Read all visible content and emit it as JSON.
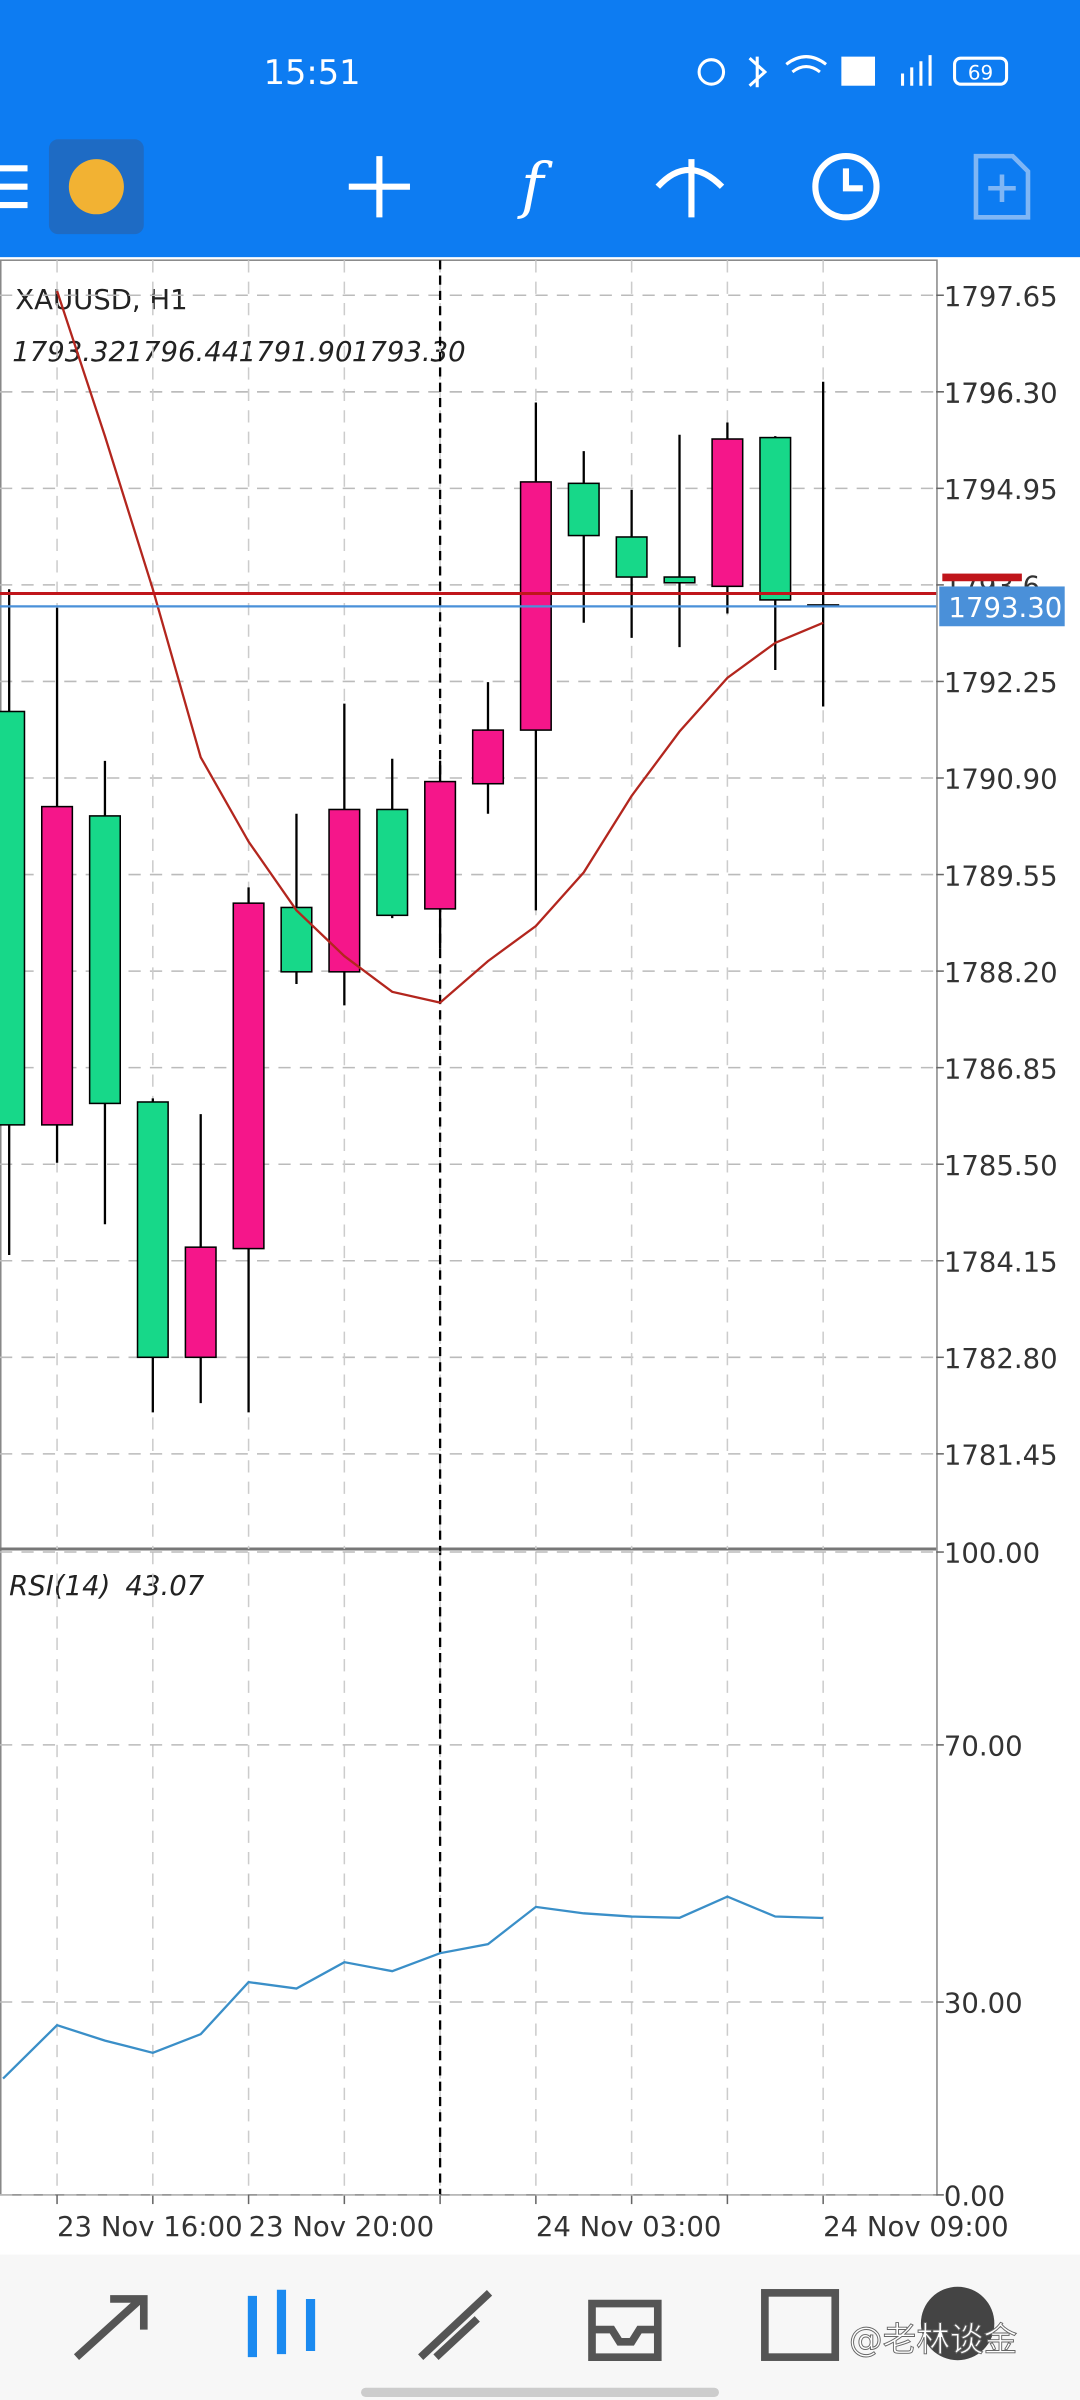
{
  "status_bar": {
    "time": "15:51",
    "battery": "69"
  },
  "watermark": "@老林谈金",
  "chart_data": [
    {
      "type": "candlestick",
      "title": "XAUUSD, H1",
      "ohlc_labels": [
        "1793.32",
        "1796.44",
        "1791.90",
        "1793.30"
      ],
      "categories": [
        null,
        "23 Nov 16:00",
        null,
        null,
        null,
        "23 Nov 20:00",
        null,
        null,
        null,
        null,
        null,
        "24 Nov 03:00",
        null,
        null,
        null,
        null,
        null,
        "24 Nov 09:00"
      ],
      "open": [
        1786.05,
        1790.5,
        1786.35,
        1782.8,
        1784.34,
        1789.15,
        1788.19,
        1790.46,
        1788.98,
        1790.85,
        1791.57,
        1795.04,
        1794.29,
        1793.71,
        1793.63,
        1795.64,
        1793.39,
        1793.32
      ],
      "high": [
        1793.54,
        1793.28,
        1791.14,
        1786.42,
        1786.2,
        1789.37,
        1790.4,
        1791.94,
        1791.17,
        1791.14,
        1792.24,
        1796.15,
        1795.47,
        1794.93,
        1795.7,
        1795.87,
        1795.68,
        1796.44
      ],
      "low": [
        1784.23,
        1785.52,
        1784.66,
        1782.03,
        1782.16,
        1782.03,
        1788.02,
        1787.72,
        1788.94,
        1788.51,
        1790.4,
        1789.05,
        1793.07,
        1792.86,
        1792.73,
        1793.2,
        1792.41,
        1791.9
      ],
      "close": [
        1791.83,
        1786.05,
        1790.37,
        1786.37,
        1782.8,
        1784.32,
        1789.09,
        1788.19,
        1790.46,
        1789.07,
        1790.82,
        1791.57,
        1795.02,
        1794.27,
        1793.71,
        1793.58,
        1795.66,
        1793.3
      ],
      "up_color": "#17d889",
      "down_color": "#f5168a",
      "ma": {
        "color": "#b3261e",
        "values": [
          null,
          1797.71,
          1795.68,
          1793.54,
          1791.19,
          1790.01,
          1789.05,
          1788.41,
          1787.91,
          1787.76,
          1788.34,
          1788.83,
          1789.58,
          1790.65,
          1791.55,
          1792.3,
          1792.79,
          1793.07
        ]
      },
      "ask_line": {
        "value": 1793.48,
        "color": "#c0151b"
      },
      "bid_line": {
        "value": 1793.3,
        "label": "1793.30",
        "color": "#4a90d9"
      },
      "ylim": [
        1780.12,
        1798.14
      ],
      "yticks": [
        1797.65,
        1796.3,
        {
          "value": 1796.3,
          "label": "1796.30"
        },
        1794.95,
        1793.6,
        1792.25,
        {
          "value": 1790.9,
          "label": "1790.90"
        },
        1789.55,
        {
          "value": 1788.2,
          "label": "1788.20"
        },
        1786.85,
        {
          "value": 1785.5,
          "label": "1785.50"
        },
        1784.15,
        {
          "value": 1782.8,
          "label": "1782.80"
        },
        1781.45
      ],
      "grid": true
    },
    {
      "type": "line",
      "title": "RSI(14)",
      "last_value": 43.07,
      "color": "#3a8fc8",
      "values": [
        18.1,
        26.4,
        24.0,
        22.1,
        25.0,
        33.1,
        32.1,
        36.2,
        34.8,
        37.6,
        39.0,
        44.8,
        43.8,
        43.3,
        43.1,
        46.4,
        43.3,
        43.07
      ],
      "ylim": [
        0,
        100
      ],
      "yticks": [
        {
          "value": 100,
          "label": "100.00"
        },
        {
          "value": 70,
          "label": "70.00"
        },
        {
          "value": 30,
          "label": "30.00"
        },
        {
          "value": 0,
          "label": "0.00"
        }
      ],
      "grid": true
    }
  ]
}
